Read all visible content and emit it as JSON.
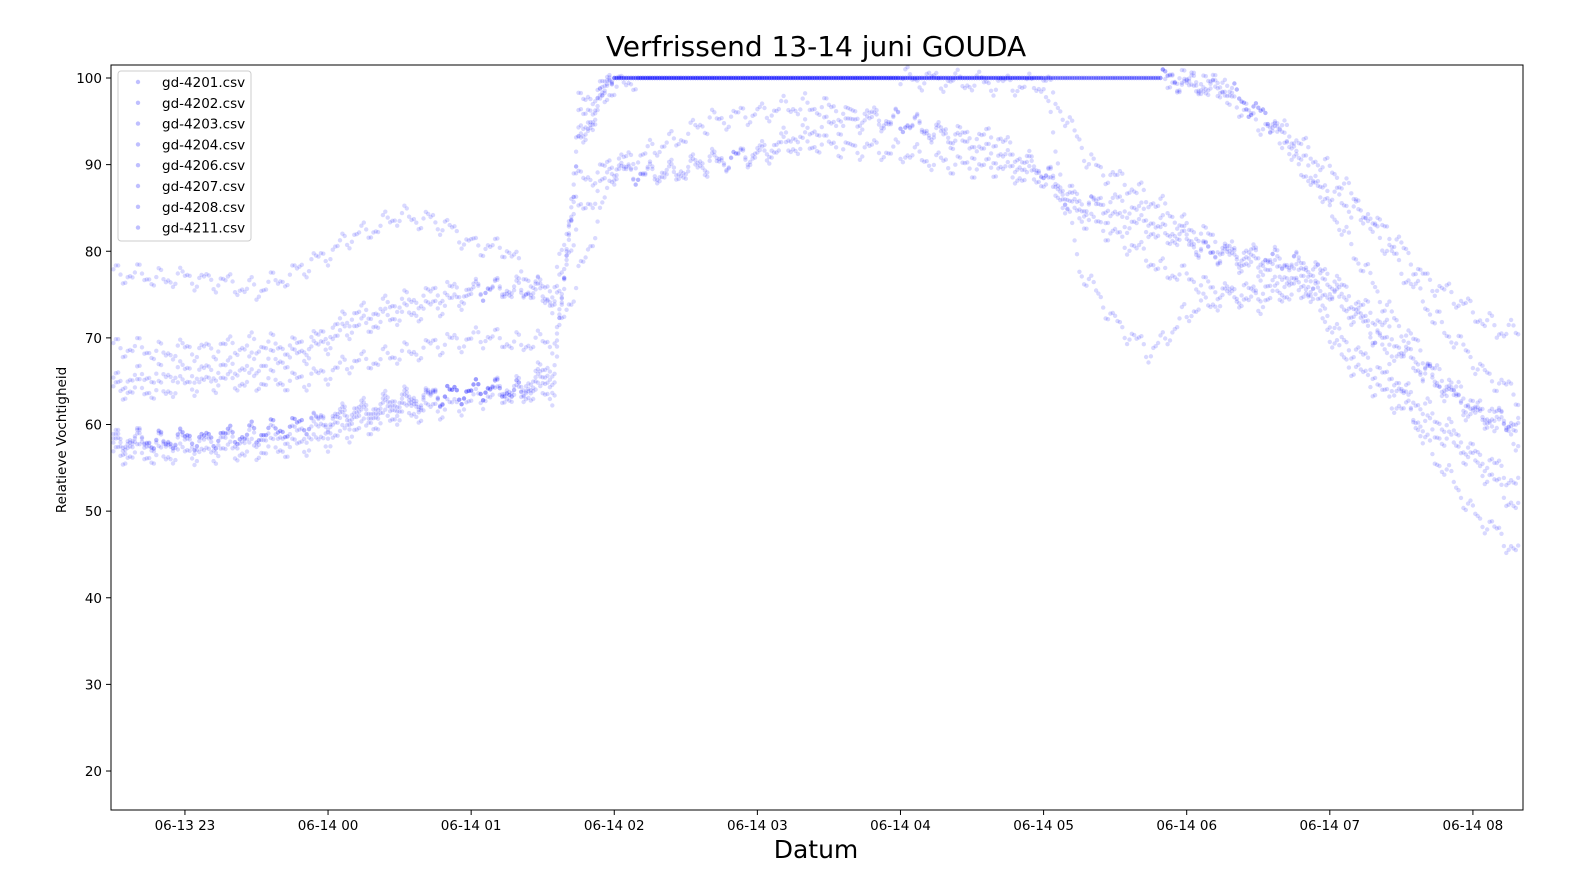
{
  "chart_data": {
    "type": "scatter",
    "title": "Verfrissend 13-14 juni GOUDA",
    "xlabel": "Datum",
    "ylabel": "Relatieve Vochtigheid",
    "x_axis_kind": "datetime",
    "xlim": [
      "2019-06-13T22:29",
      "2019-06-14T08:21"
    ],
    "ylim": [
      15.5,
      101.5
    ],
    "xticks": [
      {
        "value": "2019-06-13T23:00",
        "label": "06-13 23"
      },
      {
        "value": "2019-06-14T00:00",
        "label": "06-14 00"
      },
      {
        "value": "2019-06-14T01:00",
        "label": "06-14 01"
      },
      {
        "value": "2019-06-14T02:00",
        "label": "06-14 02"
      },
      {
        "value": "2019-06-14T03:00",
        "label": "06-14 03"
      },
      {
        "value": "2019-06-14T04:00",
        "label": "06-14 04"
      },
      {
        "value": "2019-06-14T05:00",
        "label": "06-14 05"
      },
      {
        "value": "2019-06-14T06:00",
        "label": "06-14 06"
      },
      {
        "value": "2019-06-14T07:00",
        "label": "06-14 07"
      },
      {
        "value": "2019-06-14T08:00",
        "label": "06-14 08"
      }
    ],
    "yticks": [
      20,
      30,
      40,
      50,
      60,
      70,
      80,
      90,
      100
    ],
    "grid": false,
    "legend_position": "upper-left",
    "marker_color": "#0000ff",
    "marker_opacity": 0.15,
    "series": [
      {
        "name": "gd-4201.csv",
        "points": [
          [
            "2019-06-13T22:30",
            77.5
          ],
          [
            "2019-06-13T22:50",
            77
          ],
          [
            "2019-06-13T23:10",
            76.8
          ],
          [
            "2019-06-13T23:30",
            75.5
          ],
          [
            "2019-06-13T23:50",
            78
          ],
          [
            "2019-06-14T00:10",
            81.5
          ],
          [
            "2019-06-14T00:30",
            84
          ],
          [
            "2019-06-14T00:45",
            83.5
          ],
          [
            "2019-06-14T01:00",
            81
          ],
          [
            "2019-06-14T01:15",
            80
          ],
          [
            "2019-06-14T01:30",
            75
          ],
          [
            "2019-06-14T01:38",
            74
          ],
          [
            "2019-06-14T01:45",
            92
          ],
          [
            "2019-06-14T01:55",
            98
          ],
          [
            "2019-06-14T02:10",
            100
          ],
          [
            "2019-06-14T03:00",
            100
          ],
          [
            "2019-06-14T04:00",
            100
          ],
          [
            "2019-06-14T05:00",
            100
          ],
          [
            "2019-06-14T05:50",
            100
          ],
          [
            "2019-06-14T06:15",
            99
          ],
          [
            "2019-06-14T06:25",
            96
          ],
          [
            "2019-06-14T06:40",
            93
          ],
          [
            "2019-06-14T06:55",
            87
          ],
          [
            "2019-06-14T07:10",
            85
          ],
          [
            "2019-06-14T07:25",
            82
          ],
          [
            "2019-06-14T07:40",
            77
          ],
          [
            "2019-06-14T07:55",
            74
          ],
          [
            "2019-06-14T08:10",
            71
          ],
          [
            "2019-06-14T08:20",
            70.5
          ]
        ]
      },
      {
        "name": "gd-4202.csv",
        "points": [
          [
            "2019-06-13T22:30",
            69
          ],
          [
            "2019-06-13T22:50",
            68.5
          ],
          [
            "2019-06-13T23:10",
            68.8
          ],
          [
            "2019-06-13T23:30",
            69.3
          ],
          [
            "2019-06-13T23:50",
            69
          ],
          [
            "2019-06-14T00:10",
            72.5
          ],
          [
            "2019-06-14T00:30",
            74
          ],
          [
            "2019-06-14T00:50",
            75.5
          ],
          [
            "2019-06-14T01:05",
            75.5
          ],
          [
            "2019-06-14T01:20",
            76
          ],
          [
            "2019-06-14T01:35",
            74
          ],
          [
            "2019-06-14T01:45",
            84
          ],
          [
            "2019-06-14T02:00",
            89.5
          ],
          [
            "2019-06-14T02:20",
            88.5
          ],
          [
            "2019-06-14T02:40",
            90
          ],
          [
            "2019-06-14T03:00",
            91.5
          ],
          [
            "2019-06-14T03:20",
            94
          ],
          [
            "2019-06-14T03:40",
            95
          ],
          [
            "2019-06-14T04:00",
            95
          ],
          [
            "2019-06-14T04:20",
            93
          ],
          [
            "2019-06-14T04:40",
            91
          ],
          [
            "2019-06-14T05:00",
            89
          ],
          [
            "2019-06-14T05:15",
            86
          ],
          [
            "2019-06-14T05:30",
            84
          ],
          [
            "2019-06-14T05:50",
            82
          ],
          [
            "2019-06-14T06:10",
            80
          ],
          [
            "2019-06-14T06:30",
            79
          ],
          [
            "2019-06-14T06:50",
            78.5
          ],
          [
            "2019-06-14T07:05",
            75
          ],
          [
            "2019-06-14T07:20",
            70
          ],
          [
            "2019-06-14T07:40",
            66
          ],
          [
            "2019-06-14T08:00",
            62
          ],
          [
            "2019-06-14T08:20",
            60
          ]
        ]
      },
      {
        "name": "gd-4203.csv",
        "points": [
          [
            "2019-06-13T22:30",
            65
          ],
          [
            "2019-06-13T22:50",
            66
          ],
          [
            "2019-06-13T23:10",
            66.3
          ],
          [
            "2019-06-13T23:30",
            67
          ],
          [
            "2019-06-13T23:50",
            68
          ],
          [
            "2019-06-14T00:10",
            71
          ],
          [
            "2019-06-14T00:30",
            72.5
          ],
          [
            "2019-06-14T00:50",
            74
          ],
          [
            "2019-06-14T01:05",
            75.5
          ],
          [
            "2019-06-14T01:20",
            75.5
          ],
          [
            "2019-06-14T01:35",
            76
          ],
          [
            "2019-06-14T01:45",
            88
          ],
          [
            "2019-06-14T02:00",
            90
          ],
          [
            "2019-06-14T02:20",
            92
          ],
          [
            "2019-06-14T02:40",
            95
          ],
          [
            "2019-06-14T03:00",
            96
          ],
          [
            "2019-06-14T03:20",
            97
          ],
          [
            "2019-06-14T03:40",
            96
          ],
          [
            "2019-06-14T04:00",
            95
          ],
          [
            "2019-06-14T04:20",
            93.5
          ],
          [
            "2019-06-14T04:40",
            93
          ],
          [
            "2019-06-14T05:00",
            89
          ],
          [
            "2019-06-14T05:15",
            85
          ],
          [
            "2019-06-14T05:30",
            86
          ],
          [
            "2019-06-14T05:50",
            83
          ],
          [
            "2019-06-14T06:10",
            80
          ],
          [
            "2019-06-14T06:30",
            78
          ],
          [
            "2019-06-14T06:50",
            77
          ],
          [
            "2019-06-14T07:05",
            70
          ],
          [
            "2019-06-14T07:20",
            66
          ],
          [
            "2019-06-14T07:40",
            62
          ],
          [
            "2019-06-14T08:00",
            57
          ],
          [
            "2019-06-14T08:20",
            53
          ]
        ]
      },
      {
        "name": "gd-4204.csv",
        "points": [
          [
            "2019-06-13T22:30",
            64
          ],
          [
            "2019-06-13T22:50",
            64
          ],
          [
            "2019-06-13T23:10",
            65
          ],
          [
            "2019-06-13T23:30",
            65
          ],
          [
            "2019-06-13T23:50",
            65
          ],
          [
            "2019-06-14T00:10",
            67
          ],
          [
            "2019-06-14T00:30",
            68
          ],
          [
            "2019-06-14T00:50",
            69.5
          ],
          [
            "2019-06-14T01:05",
            70
          ],
          [
            "2019-06-14T01:20",
            69.5
          ],
          [
            "2019-06-14T01:35",
            69.5
          ],
          [
            "2019-06-14T01:45",
            77
          ],
          [
            "2019-06-14T02:00",
            89
          ],
          [
            "2019-06-14T02:20",
            89
          ],
          [
            "2019-06-14T02:40",
            90.5
          ],
          [
            "2019-06-14T03:00",
            91
          ],
          [
            "2019-06-14T03:20",
            92.5
          ],
          [
            "2019-06-14T03:40",
            92
          ],
          [
            "2019-06-14T04:00",
            91.5
          ],
          [
            "2019-06-14T04:20",
            90
          ],
          [
            "2019-06-14T04:40",
            89.5
          ],
          [
            "2019-06-14T05:00",
            88
          ],
          [
            "2019-06-14T05:15",
            84
          ],
          [
            "2019-06-14T05:30",
            82
          ],
          [
            "2019-06-14T05:50",
            78
          ],
          [
            "2019-06-14T06:10",
            76
          ],
          [
            "2019-06-14T06:30",
            74
          ],
          [
            "2019-06-14T06:50",
            76
          ],
          [
            "2019-06-14T07:05",
            68
          ],
          [
            "2019-06-14T07:20",
            64
          ],
          [
            "2019-06-14T07:40",
            60
          ],
          [
            "2019-06-14T08:00",
            56
          ],
          [
            "2019-06-14T08:20",
            50
          ]
        ]
      },
      {
        "name": "gd-4206.csv",
        "points": [
          [
            "2019-06-13T22:30",
            58
          ],
          [
            "2019-06-13T22:50",
            58.3
          ],
          [
            "2019-06-13T23:10",
            58.5
          ],
          [
            "2019-06-13T23:30",
            59
          ],
          [
            "2019-06-13T23:50",
            60
          ],
          [
            "2019-06-14T00:10",
            61.5
          ],
          [
            "2019-06-14T00:30",
            63
          ],
          [
            "2019-06-14T00:50",
            63.5
          ],
          [
            "2019-06-14T01:05",
            64
          ],
          [
            "2019-06-14T01:20",
            64.5
          ],
          [
            "2019-06-14T01:35",
            67
          ],
          [
            "2019-06-14T01:45",
            92
          ],
          [
            "2019-06-14T02:00",
            100
          ],
          [
            "2019-06-14T03:00",
            100
          ],
          [
            "2019-06-14T04:00",
            100
          ],
          [
            "2019-06-14T05:00",
            100
          ],
          [
            "2019-06-14T05:20",
            90
          ],
          [
            "2019-06-14T05:40",
            87
          ],
          [
            "2019-06-14T06:00",
            83
          ],
          [
            "2019-06-14T06:20",
            80
          ],
          [
            "2019-06-14T06:40",
            79
          ],
          [
            "2019-06-14T07:00",
            77
          ],
          [
            "2019-06-14T07:20",
            72
          ],
          [
            "2019-06-14T07:40",
            66
          ],
          [
            "2019-06-14T08:00",
            61
          ],
          [
            "2019-06-14T08:20",
            60
          ]
        ]
      },
      {
        "name": "gd-4207.csv",
        "points": [
          [
            "2019-06-13T22:30",
            57.5
          ],
          [
            "2019-06-13T22:50",
            58
          ],
          [
            "2019-06-13T23:10",
            58
          ],
          [
            "2019-06-13T23:30",
            58.5
          ],
          [
            "2019-06-13T23:50",
            59
          ],
          [
            "2019-06-14T00:10",
            60.5
          ],
          [
            "2019-06-14T00:30",
            62
          ],
          [
            "2019-06-14T00:50",
            63.5
          ],
          [
            "2019-06-14T01:05",
            64
          ],
          [
            "2019-06-14T01:20",
            64
          ],
          [
            "2019-06-14T01:35",
            65
          ],
          [
            "2019-06-14T01:45",
            95
          ],
          [
            "2019-06-14T02:00",
            100
          ],
          [
            "2019-06-14T03:00",
            100
          ],
          [
            "2019-06-14T04:00",
            100
          ],
          [
            "2019-06-14T05:00",
            99
          ],
          [
            "2019-06-14T05:15",
            78
          ],
          [
            "2019-06-14T05:30",
            72
          ],
          [
            "2019-06-14T05:45",
            68
          ],
          [
            "2019-06-14T06:00",
            73
          ],
          [
            "2019-06-14T06:20",
            75
          ],
          [
            "2019-06-14T06:40",
            76
          ],
          [
            "2019-06-14T07:00",
            75
          ],
          [
            "2019-06-14T07:20",
            70
          ],
          [
            "2019-06-14T07:40",
            58
          ],
          [
            "2019-06-14T08:00",
            50
          ],
          [
            "2019-06-14T08:20",
            45
          ]
        ]
      },
      {
        "name": "gd-4208.csv",
        "points": [
          [
            "2019-06-13T22:30",
            56.5
          ],
          [
            "2019-06-13T22:50",
            56.5
          ],
          [
            "2019-06-13T23:10",
            56.8
          ],
          [
            "2019-06-13T23:30",
            57
          ],
          [
            "2019-06-13T23:50",
            57.5
          ],
          [
            "2019-06-14T00:10",
            59
          ],
          [
            "2019-06-14T00:30",
            61
          ],
          [
            "2019-06-14T00:50",
            62
          ],
          [
            "2019-06-14T01:05",
            63
          ],
          [
            "2019-06-14T01:20",
            63.5
          ],
          [
            "2019-06-14T01:35",
            63.5
          ],
          [
            "2019-06-14T01:45",
            97
          ],
          [
            "2019-06-14T02:00",
            100
          ],
          [
            "2019-06-14T03:00",
            100
          ],
          [
            "2019-06-14T04:00",
            100
          ],
          [
            "2019-06-14T05:00",
            100
          ],
          [
            "2019-06-14T05:50",
            100
          ],
          [
            "2019-06-14T06:15",
            99
          ],
          [
            "2019-06-14T06:35",
            95
          ],
          [
            "2019-06-14T06:55",
            88
          ],
          [
            "2019-06-14T07:10",
            80
          ],
          [
            "2019-06-14T07:25",
            73
          ],
          [
            "2019-06-14T07:45",
            66
          ],
          [
            "2019-06-14T08:00",
            62
          ],
          [
            "2019-06-14T08:20",
            58
          ]
        ]
      },
      {
        "name": "gd-4211.csv",
        "points": [
          [
            "2019-06-13T22:30",
            58.5
          ],
          [
            "2019-06-13T22:50",
            58.2
          ],
          [
            "2019-06-13T23:10",
            58.5
          ],
          [
            "2019-06-13T23:30",
            59
          ],
          [
            "2019-06-13T23:50",
            60
          ],
          [
            "2019-06-14T00:10",
            61
          ],
          [
            "2019-06-14T00:30",
            62.5
          ],
          [
            "2019-06-14T00:50",
            63.5
          ],
          [
            "2019-06-14T01:05",
            64
          ],
          [
            "2019-06-14T01:20",
            64
          ],
          [
            "2019-06-14T01:35",
            66
          ],
          [
            "2019-06-14T01:45",
            93
          ],
          [
            "2019-06-14T02:00",
            100
          ],
          [
            "2019-06-14T03:00",
            100
          ],
          [
            "2019-06-14T04:00",
            100
          ],
          [
            "2019-06-14T05:00",
            100
          ],
          [
            "2019-06-14T05:50",
            100
          ],
          [
            "2019-06-14T06:20",
            98
          ],
          [
            "2019-06-14T06:45",
            93
          ],
          [
            "2019-06-14T07:05",
            88
          ],
          [
            "2019-06-14T07:25",
            80
          ],
          [
            "2019-06-14T07:45",
            72
          ],
          [
            "2019-06-14T08:05",
            66
          ],
          [
            "2019-06-14T08:20",
            63
          ]
        ]
      }
    ]
  }
}
